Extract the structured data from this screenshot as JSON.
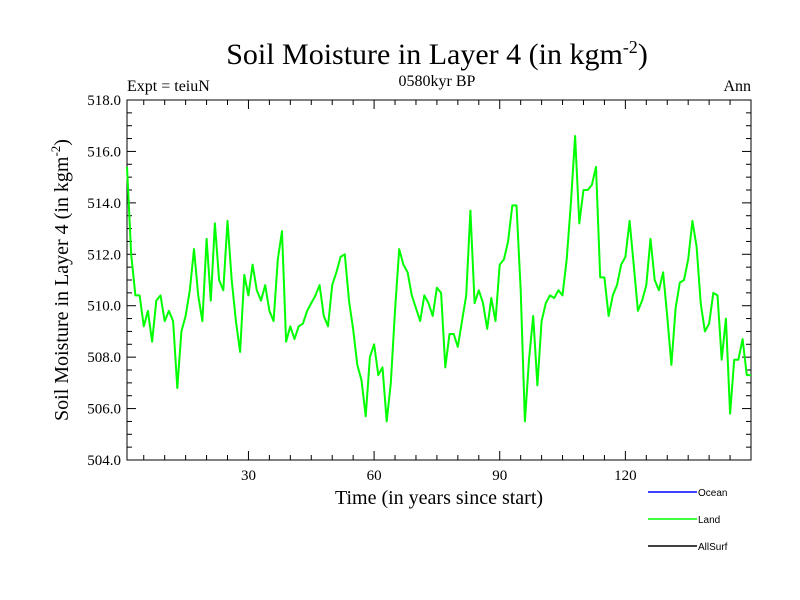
{
  "chart_data": {
    "type": "line",
    "title": "Soil Moisture in Layer 4 (in kgm",
    "title_sup": "-2",
    "title_end": ")",
    "subtitle_left": "Expt = teiuN",
    "subtitle_center": "0580kyr BP",
    "subtitle_right": "Ann",
    "xlabel": "Time (in years since start)",
    "ylabel": "Soil Moisture in Layer 4 (in kgm",
    "ylabel_sup": "-2",
    "ylabel_end": ")",
    "xlim": [
      1,
      150
    ],
    "ylim": [
      504,
      518
    ],
    "xticks": [
      30,
      60,
      90,
      120
    ],
    "xtick_labels": [
      "30",
      "60",
      "90",
      "120"
    ],
    "yticks": [
      504,
      506,
      508,
      510,
      512,
      514,
      516,
      518
    ],
    "ytick_labels": [
      "504.0",
      "506.0",
      "508.0",
      "510.0",
      "512.0",
      "514.0",
      "516.0",
      "518.0"
    ],
    "legend": [
      {
        "name": "Ocean",
        "color": "#0000ff"
      },
      {
        "name": "Land",
        "color": "#00ff00"
      },
      {
        "name": "AllSurf",
        "color": "#000000"
      }
    ],
    "series": [
      {
        "name": "Land",
        "color": "#00ff00",
        "x": [
          1,
          2,
          3,
          4,
          5,
          6,
          7,
          8,
          9,
          10,
          11,
          12,
          13,
          14,
          15,
          16,
          17,
          18,
          19,
          20,
          21,
          22,
          23,
          24,
          25,
          26,
          27,
          28,
          29,
          30,
          31,
          32,
          33,
          34,
          35,
          36,
          37,
          38,
          39,
          40,
          41,
          42,
          43,
          44,
          45,
          46,
          47,
          48,
          49,
          50,
          51,
          52,
          53,
          54,
          55,
          56,
          57,
          58,
          59,
          60,
          61,
          62,
          63,
          64,
          65,
          66,
          67,
          68,
          69,
          70,
          71,
          72,
          73,
          74,
          75,
          76,
          77,
          78,
          79,
          80,
          81,
          82,
          83,
          84,
          85,
          86,
          87,
          88,
          89,
          90,
          91,
          92,
          93,
          94,
          95,
          96,
          97,
          98,
          99,
          100,
          101,
          102,
          103,
          104,
          105,
          106,
          107,
          108,
          109,
          110,
          111,
          112,
          113,
          114,
          115,
          116,
          117,
          118,
          119,
          120,
          121,
          122,
          123,
          124,
          125,
          126,
          127,
          128,
          129,
          130,
          131,
          132,
          133,
          134,
          135,
          136,
          137,
          138,
          139,
          140,
          141,
          142,
          143,
          144,
          145,
          146,
          147,
          148,
          149,
          150
        ],
        "values": [
          515.4,
          512.0,
          510.4,
          510.4,
          509.2,
          509.8,
          508.6,
          510.2,
          510.4,
          509.4,
          509.8,
          509.4,
          506.8,
          509.0,
          509.6,
          510.6,
          512.2,
          510.4,
          509.4,
          512.6,
          510.2,
          513.2,
          511.0,
          510.6,
          513.3,
          511.0,
          509.4,
          508.2,
          511.2,
          510.4,
          511.6,
          510.6,
          510.2,
          510.8,
          509.8,
          509.4,
          511.8,
          512.9,
          508.6,
          509.2,
          508.7,
          509.2,
          509.3,
          509.8,
          510.1,
          510.4,
          510.8,
          509.6,
          509.2,
          510.8,
          511.3,
          511.9,
          512.0,
          510.2,
          509.1,
          507.7,
          507.1,
          505.7,
          508.0,
          508.5,
          507.3,
          507.6,
          505.5,
          507.0,
          509.8,
          512.2,
          511.6,
          511.3,
          510.4,
          509.9,
          509.4,
          510.4,
          510.1,
          509.6,
          510.7,
          510.5,
          507.6,
          508.9,
          508.9,
          508.4,
          509.4,
          510.4,
          513.7,
          510.1,
          510.6,
          510.1,
          509.1,
          510.3,
          509.4,
          511.6,
          511.8,
          512.5,
          513.9,
          513.9,
          510.6,
          505.5,
          507.9,
          509.6,
          506.9,
          509.4,
          510.1,
          510.4,
          510.3,
          510.6,
          510.4,
          511.8,
          514.0,
          516.6,
          513.2,
          514.5,
          514.5,
          514.7,
          515.4,
          511.1,
          511.1,
          509.6,
          510.4,
          510.8,
          511.6,
          511.9,
          513.3,
          511.6,
          509.8,
          510.2,
          510.8,
          512.6,
          511.0,
          510.6,
          511.3,
          509.6,
          507.7,
          509.9,
          510.9,
          511.0,
          511.8,
          513.3,
          512.3,
          510.1,
          509.0,
          509.3,
          510.5,
          510.4,
          507.9,
          509.5,
          505.8,
          507.9,
          507.9,
          508.7,
          507.3,
          507.3
        ]
      }
    ]
  }
}
